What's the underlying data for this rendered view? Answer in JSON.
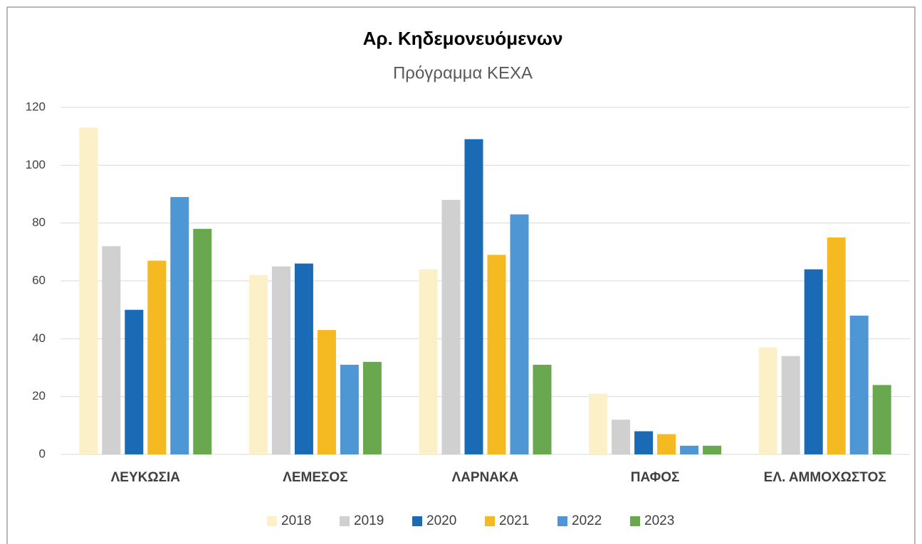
{
  "chart_data": {
    "type": "bar",
    "title": "Αρ. Κηδεμονευόμενων",
    "subtitle": "Πρόγραμμα ΚΕΧΑ",
    "categories": [
      "ΛΕΥΚΩΣΙΑ",
      "ΛΕΜΕΣΟΣ",
      "ΛΑΡΝΑΚΑ",
      "ΠΑΦΟΣ",
      "ΕΛ. ΑΜΜΟΧΩΣΤΟΣ"
    ],
    "series": [
      {
        "name": "2018",
        "color": "#fcf0c8",
        "values": [
          113,
          62,
          64,
          21,
          37
        ]
      },
      {
        "name": "2019",
        "color": "#d0d0d0",
        "values": [
          72,
          65,
          88,
          12,
          34
        ]
      },
      {
        "name": "2020",
        "color": "#1a6ab5",
        "values": [
          50,
          66,
          109,
          8,
          64
        ]
      },
      {
        "name": "2021",
        "color": "#f5b921",
        "values": [
          67,
          43,
          69,
          7,
          75
        ]
      },
      {
        "name": "2022",
        "color": "#4f97d4",
        "values": [
          89,
          31,
          83,
          3,
          48
        ]
      },
      {
        "name": "2023",
        "color": "#6aa84f",
        "values": [
          78,
          32,
          31,
          3,
          24
        ]
      }
    ],
    "ylim": [
      0,
      120
    ],
    "yticks": [
      0,
      20,
      40,
      60,
      80,
      100,
      120
    ],
    "grid": true,
    "legend": "bottom"
  }
}
